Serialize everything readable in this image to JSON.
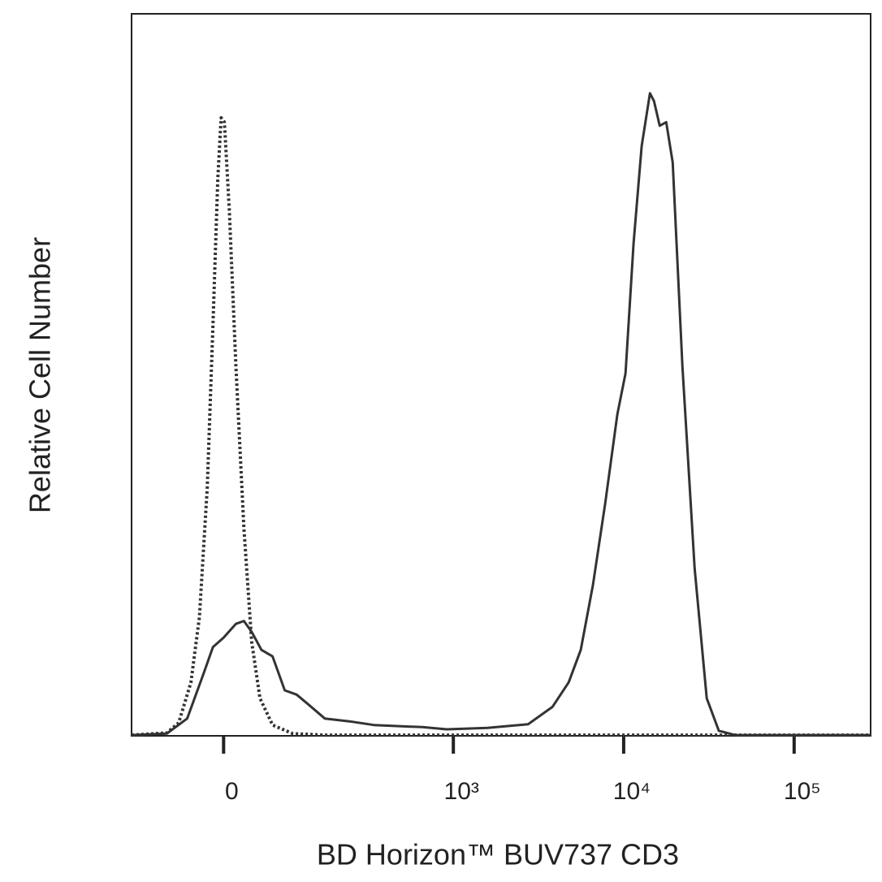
{
  "chart_data": {
    "type": "line",
    "x_label": "BD Horizon™ BUV737 CD3",
    "y_label": "Relative Cell Number",
    "xscale": "biexponential",
    "xlim": [
      -143,
      281000
    ],
    "ylim": [
      0,
      100
    ],
    "xticks": [
      0,
      {
        "value": 1000,
        "label": "10³"
      },
      {
        "value": 10000,
        "label": "10⁴"
      },
      {
        "value": 100000,
        "label": "10⁵"
      }
    ],
    "series": [
      {
        "color": "#333333",
        "dash": "solid",
        "x": [
          -143,
          -76,
          -46,
          -25,
          -13,
          0,
          15,
          25,
          35,
          48,
          64,
          83,
          104,
          128,
          165,
          238,
          336,
          657,
          915,
          1588,
          2747,
          3818,
          4755,
          5604,
          6606,
          7790,
          9180,
          10250,
          11430,
          12760,
          14260,
          15070,
          16270,
          17760,
          19400,
          22110,
          26070,
          30700,
          36180,
          45000,
          281000
        ],
        "values": [
          0.1,
          0.3,
          2.4,
          8.5,
          12.3,
          13.6,
          15.5,
          15.9,
          14.4,
          11.9,
          11.0,
          6.3,
          5.7,
          4.3,
          2.4,
          2.0,
          1.5,
          1.2,
          0.9,
          1.1,
          1.6,
          4.0,
          7.4,
          11.9,
          20.9,
          32.2,
          44.5,
          50.2,
          68.2,
          81.7,
          89.0,
          87.9,
          84.5,
          85.0,
          79.4,
          51.3,
          23.2,
          5.2,
          0.7,
          0.1,
          0.1
        ]
      },
      {
        "color": "#333333",
        "dash": "dotted",
        "x": [
          -143,
          -76,
          -58,
          -41,
          -30,
          -20,
          -13,
          -7,
          -3,
          1,
          7,
          15,
          25,
          35,
          46,
          64,
          97,
          165,
          281000
        ],
        "values": [
          0.1,
          0.4,
          1.8,
          7.4,
          16.4,
          34.4,
          56.9,
          77.2,
          85.6,
          85.0,
          72.7,
          51.3,
          28.8,
          13.0,
          5.2,
          1.5,
          0.3,
          0.1,
          0.1
        ]
      }
    ]
  }
}
